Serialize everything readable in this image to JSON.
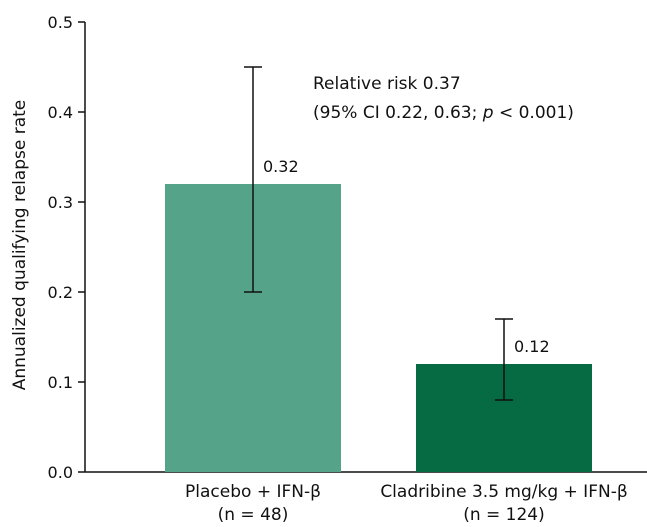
{
  "chart_data": {
    "type": "bar",
    "ylabel": "Annualized qualifying relapse rate",
    "ylim": [
      0,
      0.5
    ],
    "yticks": [
      "0.0",
      "0.1",
      "0.2",
      "0.3",
      "0.4",
      "0.5"
    ],
    "grid": false,
    "categories": [
      {
        "line1": "Placebo + IFN-β",
        "line2": "(n = 48)"
      },
      {
        "line1": "Cladribine 3.5 mg/kg + IFN-β",
        "line2": "(n = 124)"
      }
    ],
    "values": [
      0.32,
      0.12
    ],
    "value_labels": [
      "0.32",
      "0.12"
    ],
    "error_bars": [
      {
        "low": 0.2,
        "high": 0.45
      },
      {
        "low": 0.08,
        "high": 0.17
      }
    ],
    "colors": [
      "#55a48a",
      "#066b42"
    ],
    "annotation": {
      "line1": "Relative risk 0.37",
      "line2_prefix": "(95% CI 0.22, 0.63; ",
      "line2_p": "p",
      "line2_suffix": " < 0.001)"
    }
  }
}
